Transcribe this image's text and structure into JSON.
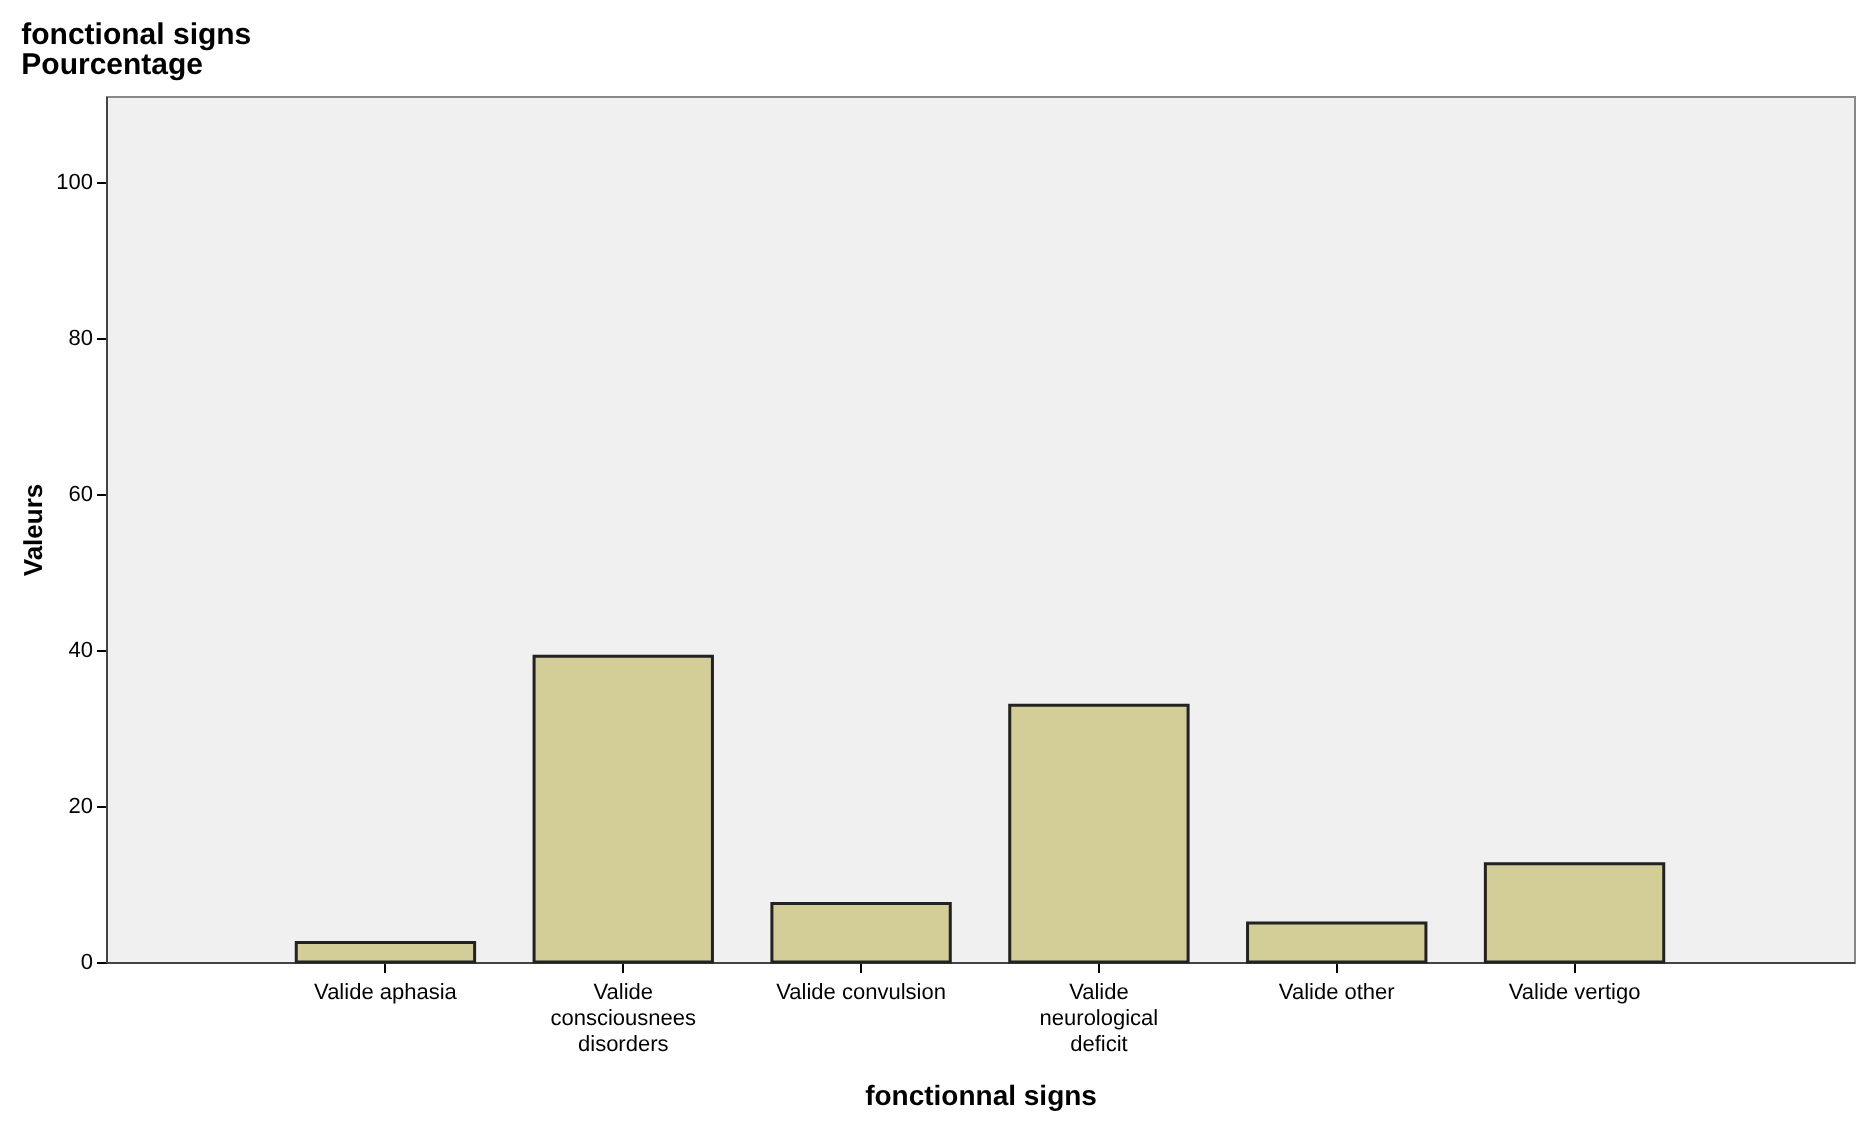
{
  "chart_data": {
    "type": "bar",
    "title": "fonctional signs",
    "subtitle": "Pourcentage",
    "xlabel": "fonctionnal signs",
    "ylabel": "Valeurs",
    "categories": [
      "Valide aphasia",
      "Valide\nconsciousnees\ndisorders",
      "Valide convulsion",
      "Valide\nneurological\ndeficit",
      "Valide other",
      "Valide vertigo"
    ],
    "values": [
      2.5,
      39.2,
      7.5,
      32.9,
      5.0,
      12.6
    ],
    "color": "#d3ce97",
    "ylim": [
      0,
      111
    ],
    "yticks": [
      0,
      20,
      40,
      60,
      80,
      100
    ],
    "grid": false
  }
}
